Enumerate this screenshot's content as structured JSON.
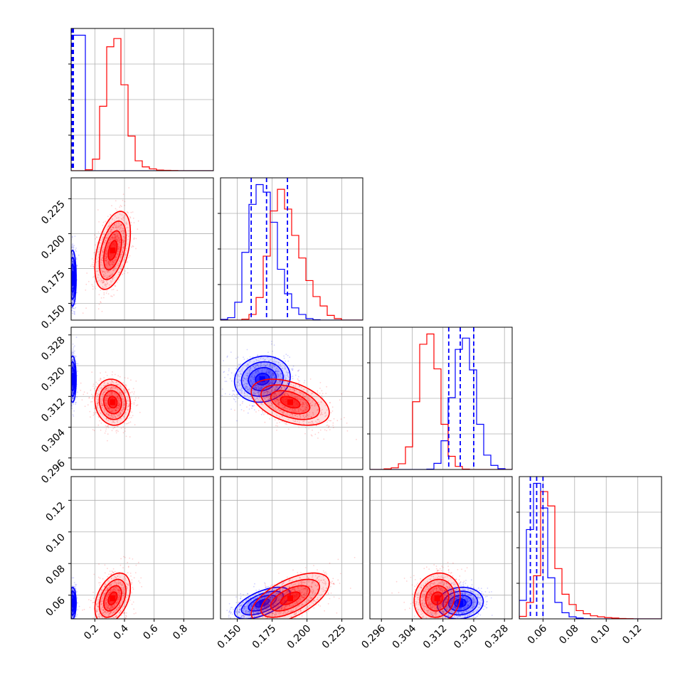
{
  "chart_data": {
    "type": "corner",
    "parameters": 4,
    "grid": true,
    "colors": {
      "series_a": "#0000ff",
      "series_b": "#ff0000"
    },
    "series": [
      {
        "name": "blue",
        "color": "#0000ff",
        "means": [
          0.05,
          0.168,
          0.3165,
          0.055
        ],
        "sds": [
          0.012,
          0.01,
          0.003,
          0.005
        ],
        "quantile_lines": [
          [
            0.045,
            0.05,
            0.055
          ],
          [
            0.16,
            0.171,
            0.186
          ],
          [
            0.3135,
            0.3165,
            0.32
          ],
          [
            0.052,
            0.056,
            0.06
          ]
        ]
      },
      {
        "name": "red",
        "color": "#ff0000",
        "means": [
          0.32,
          0.188,
          0.3105,
          0.058
        ],
        "sds": [
          0.06,
          0.014,
          0.003,
          0.008
        ]
      }
    ],
    "axes": [
      {
        "range": [
          0.04,
          1.0
        ],
        "ticks": [
          0.2,
          0.4,
          0.6,
          0.8
        ],
        "tick_labels": [
          "0.2",
          "0.4",
          "0.6",
          "0.8"
        ]
      },
      {
        "range": [
          0.138,
          0.24
        ],
        "ticks": [
          0.15,
          0.175,
          0.2,
          0.225
        ],
        "tick_labels": [
          "0.150",
          "0.175",
          "0.200",
          "0.225"
        ]
      },
      {
        "range": [
          0.293,
          0.33
        ],
        "ticks": [
          0.296,
          0.304,
          0.312,
          0.32,
          0.328
        ],
        "tick_labels": [
          "0.296",
          "0.304",
          "0.312",
          "0.320",
          "0.328"
        ]
      },
      {
        "range": [
          0.045,
          0.135
        ],
        "ticks": [
          0.06,
          0.08,
          0.1,
          0.12
        ],
        "tick_labels": [
          "0.06",
          "0.08",
          "0.10",
          "0.12"
        ]
      }
    ],
    "histograms": [
      {
        "bin_edges": [
          0.04,
          0.088,
          0.136,
          0.184,
          0.232,
          0.28,
          0.328,
          0.376,
          0.424,
          0.472,
          0.52,
          0.568,
          0.616,
          0.664,
          0.712,
          0.76,
          0.808,
          0.856,
          0.904,
          0.952,
          1.0
        ],
        "blue": [
          8200,
          8200,
          0,
          0,
          0,
          0,
          0,
          0,
          0,
          0,
          0,
          0,
          0,
          0,
          0,
          0,
          0,
          0,
          0,
          0
        ],
        "red": [
          0,
          0,
          60,
          700,
          3900,
          7500,
          8000,
          5200,
          2100,
          600,
          230,
          110,
          40,
          20,
          10,
          0,
          0,
          0,
          0,
          0
        ]
      },
      {
        "bin_edges": [
          0.138,
          0.1431,
          0.1482,
          0.1533,
          0.1584,
          0.1635,
          0.1686,
          0.1737,
          0.1788,
          0.1839,
          0.189,
          0.1941,
          0.1992,
          0.2043,
          0.2094,
          0.2145,
          0.2196,
          0.2247,
          0.2298,
          0.2349,
          0.24
        ],
        "blue": [
          40,
          130,
          950,
          3600,
          6150,
          7200,
          6800,
          5200,
          2700,
          1400,
          650,
          300,
          80,
          20,
          0,
          0,
          0,
          0,
          0,
          0
        ],
        "red": [
          0,
          0,
          0,
          50,
          300,
          1200,
          3400,
          5800,
          6950,
          5900,
          4500,
          3300,
          2100,
          1250,
          750,
          250,
          80,
          0,
          0,
          0
        ]
      },
      {
        "bin_edges": [
          0.293,
          0.29485,
          0.2967,
          0.29855,
          0.3004,
          0.30225,
          0.3041,
          0.30595,
          0.3078,
          0.30965,
          0.3115,
          0.31335,
          0.3152,
          0.31705,
          0.3189,
          0.32075,
          0.3226,
          0.32445,
          0.3263,
          0.32815,
          0.33
        ],
        "blue": [
          0,
          0,
          0,
          0,
          0,
          0,
          0,
          0,
          20,
          300,
          1400,
          3500,
          5850,
          6400,
          4850,
          2200,
          700,
          200,
          40,
          0
        ],
        "red": [
          0,
          0,
          30,
          80,
          280,
          1100,
          3300,
          6100,
          6600,
          4900,
          2200,
          640,
          150,
          20,
          0,
          0,
          0,
          0,
          0,
          0
        ]
      },
      {
        "bin_edges": [
          0.045,
          0.0495,
          0.054,
          0.0585,
          0.063,
          0.0675,
          0.072,
          0.0765,
          0.081,
          0.0855,
          0.09,
          0.0945,
          0.099,
          0.1035,
          0.108,
          0.1125,
          0.117,
          0.1215,
          0.126,
          0.1305,
          0.135
        ],
        "blue": [
          900,
          4350,
          6600,
          5400,
          2000,
          800,
          300,
          100,
          40,
          10,
          0,
          0,
          0,
          0,
          0,
          0,
          0,
          0,
          0,
          0
        ],
        "red": [
          120,
          800,
          2100,
          6200,
          5500,
          2450,
          1200,
          700,
          400,
          250,
          150,
          100,
          60,
          40,
          20,
          10,
          0,
          0,
          0,
          0
        ]
      }
    ]
  }
}
